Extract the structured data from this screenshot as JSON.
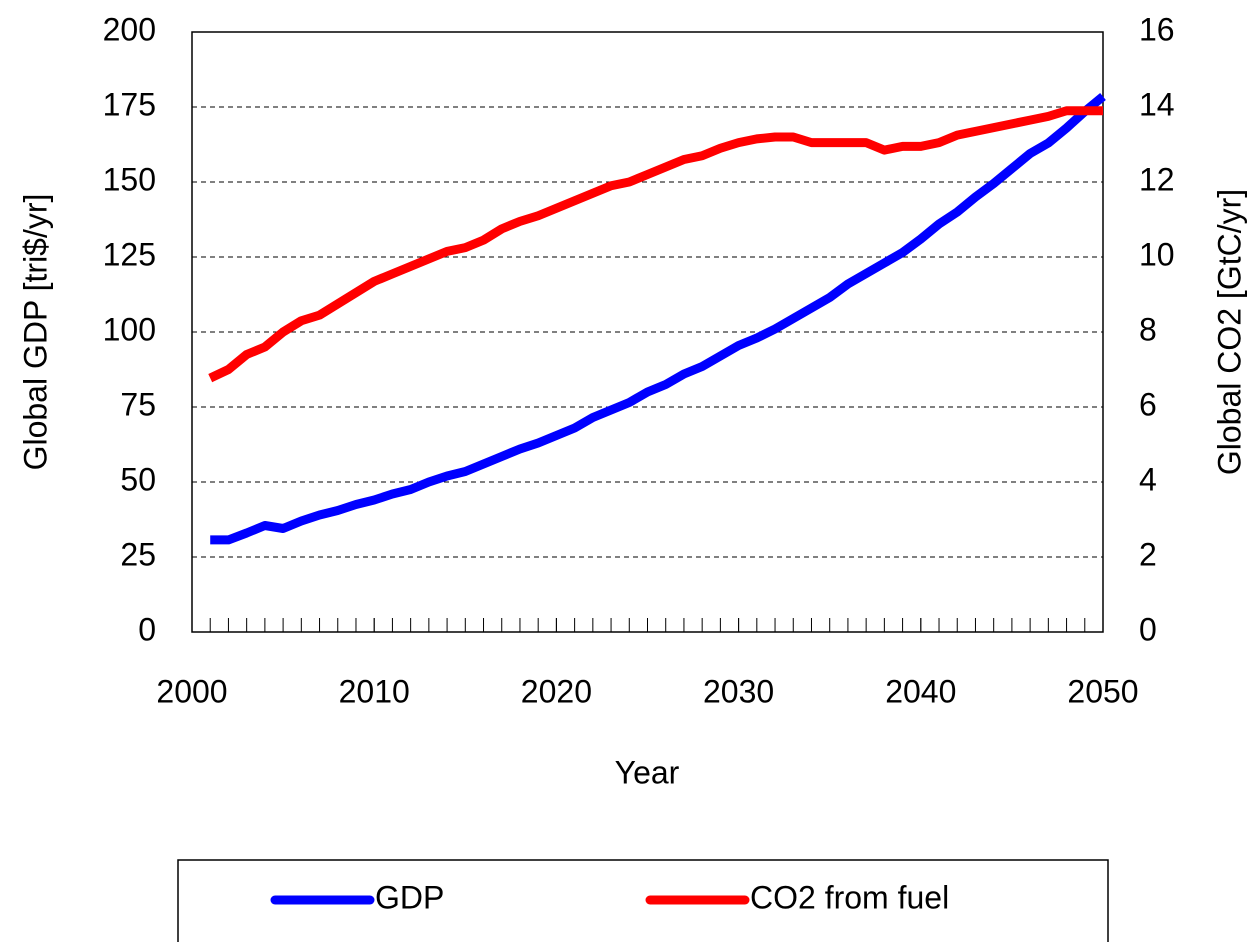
{
  "chart_data": {
    "type": "line",
    "xlabel": "Year",
    "ylabel": "Global GDP [tri$/yr]",
    "y2label": "Global CO2 [GtC/yr]",
    "x": [
      2001,
      2002,
      2003,
      2004,
      2005,
      2006,
      2007,
      2008,
      2009,
      2010,
      2011,
      2012,
      2013,
      2014,
      2015,
      2016,
      2017,
      2018,
      2019,
      2020,
      2021,
      2022,
      2023,
      2024,
      2025,
      2026,
      2027,
      2028,
      2029,
      2030,
      2031,
      2032,
      2033,
      2034,
      2035,
      2036,
      2037,
      2038,
      2039,
      2040,
      2041,
      2042,
      2043,
      2044,
      2045,
      2046,
      2047,
      2048,
      2049,
      2050
    ],
    "series": [
      {
        "name": "GDP",
        "color": "#0000ff",
        "axis": "y",
        "values": [
          30.7,
          30.7,
          33,
          35.5,
          34.5,
          37,
          39,
          40.5,
          42.5,
          44,
          46,
          47.5,
          50,
          52,
          53.5,
          56,
          58.5,
          61,
          63,
          65.5,
          68,
          71.5,
          74,
          76.5,
          80,
          82.5,
          86,
          88.5,
          92,
          95.5,
          98,
          101,
          104.5,
          108,
          111.5,
          116,
          119.5,
          123,
          126.5,
          131,
          136,
          140,
          145,
          149.5,
          154.5,
          159.5,
          163,
          168,
          173.5,
          178.5
        ]
      },
      {
        "name": "CO2 from fuel",
        "color": "#ff0000",
        "axis": "y2",
        "values": [
          6.77,
          7.0,
          7.4,
          7.6,
          8.0,
          8.3,
          8.45,
          8.75,
          9.05,
          9.35,
          9.55,
          9.75,
          9.95,
          10.15,
          10.25,
          10.45,
          10.75,
          10.95,
          11.1,
          11.3,
          11.5,
          11.7,
          11.9,
          12.0,
          12.2,
          12.4,
          12.6,
          12.7,
          12.9,
          13.05,
          13.15,
          13.2,
          13.2,
          13.05,
          13.05,
          13.05,
          13.05,
          12.85,
          12.95,
          12.95,
          13.05,
          13.25,
          13.35,
          13.45,
          13.55,
          13.65,
          13.75,
          13.9,
          13.9,
          13.9
        ]
      }
    ],
    "xlim": [
      2000,
      2050
    ],
    "xticks": [
      2000,
      2010,
      2020,
      2030,
      2040,
      2050
    ],
    "ylim": [
      0,
      200
    ],
    "yticks": [
      0,
      25,
      50,
      75,
      100,
      125,
      150,
      175,
      200
    ],
    "y2lim": [
      0,
      16
    ],
    "y2ticks": [
      0,
      2,
      4,
      6,
      8,
      10,
      12,
      14,
      16
    ],
    "grid": true,
    "legend": "bottom"
  }
}
